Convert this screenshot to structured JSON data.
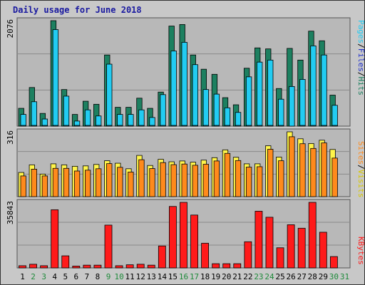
{
  "title": "Daily usage for June 2018",
  "colors": {
    "background": "#c8c8c8",
    "panel": "#b8b8b8",
    "grid": "#8a8a8a",
    "hits": "#1d8060",
    "files": "#22ccf2",
    "visits": "#fff44a",
    "sites": "#ff8a1c",
    "kbytes": "#ff1a1a",
    "title_text": "#1a1aa0",
    "weekend_day": "#1e8a3a",
    "weekday": "#000000"
  },
  "axis_labels": {
    "pages": "Pages",
    "files": "Files",
    "hits": "Hits",
    "sites": "Sites",
    "visits": "Visits",
    "kbytes": "KBytes",
    "sep": "/"
  },
  "chart_data": [
    {
      "type": "bar",
      "title": "",
      "ymax_label": "2076",
      "ylim": [
        0,
        2076
      ],
      "categories": [
        "1",
        "2",
        "3",
        "4",
        "5",
        "6",
        "7",
        "8",
        "9",
        "10",
        "11",
        "12",
        "13",
        "14",
        "15",
        "16",
        "17",
        "18",
        "19",
        "20",
        "21",
        "22",
        "23",
        "24",
        "25",
        "26",
        "27",
        "28",
        "29",
        "30",
        "31"
      ],
      "series": [
        {
          "name": "Hits",
          "values": [
            350,
            760,
            250,
            2076,
            720,
            230,
            490,
            430,
            1400,
            370,
            370,
            550,
            350,
            670,
            1970,
            2000,
            1400,
            1120,
            1020,
            560,
            420,
            1140,
            1540,
            1520,
            740,
            1530,
            1300,
            1870,
            1680,
            610,
            0
          ]
        },
        {
          "name": "Files",
          "values": [
            230,
            480,
            140,
            1900,
            590,
            100,
            320,
            200,
            1220,
            230,
            230,
            320,
            170,
            620,
            1480,
            1650,
            1210,
            720,
            630,
            360,
            270,
            970,
            1260,
            1300,
            530,
            780,
            920,
            1580,
            1400,
            410,
            0
          ]
        },
        {
          "name": "Pages",
          "values": [
            10,
            10,
            10,
            10,
            10,
            10,
            10,
            10,
            10,
            10,
            10,
            10,
            10,
            10,
            10,
            10,
            10,
            10,
            10,
            10,
            10,
            10,
            10,
            10,
            10,
            780,
            10,
            10,
            10,
            10,
            0
          ]
        }
      ]
    },
    {
      "type": "bar",
      "title": "",
      "ymax_label": "316",
      "ylim": [
        0,
        316
      ],
      "categories": [
        "1",
        "2",
        "3",
        "4",
        "5",
        "6",
        "7",
        "8",
        "9",
        "10",
        "11",
        "12",
        "13",
        "14",
        "15",
        "16",
        "17",
        "18",
        "19",
        "20",
        "21",
        "22",
        "23",
        "24",
        "25",
        "26",
        "27",
        "28",
        "29",
        "30",
        "31"
      ],
      "series": [
        {
          "name": "Visits",
          "values": [
            118,
            155,
            110,
            160,
            155,
            148,
            150,
            157,
            175,
            163,
            136,
            201,
            152,
            182,
            170,
            174,
            168,
            178,
            190,
            228,
            192,
            160,
            160,
            248,
            193,
            316,
            282,
            259,
            275,
            230,
            0
          ]
        },
        {
          "name": "Sites",
          "values": [
            101,
            134,
            101,
            138,
            138,
            125,
            129,
            136,
            161,
            143,
            120,
            180,
            137,
            166,
            156,
            159,
            153,
            158,
            174,
            211,
            176,
            144,
            146,
            231,
            175,
            292,
            258,
            235,
            262,
            188,
            0
          ]
        }
      ]
    },
    {
      "type": "bar",
      "title": "",
      "ymax_label": "35843",
      "ylim": [
        0,
        35843
      ],
      "categories": [
        "1",
        "2",
        "3",
        "4",
        "5",
        "6",
        "7",
        "8",
        "9",
        "10",
        "11",
        "12",
        "13",
        "14",
        "15",
        "16",
        "17",
        "18",
        "19",
        "20",
        "21",
        "22",
        "23",
        "24",
        "25",
        "26",
        "27",
        "28",
        "29",
        "30",
        "31"
      ],
      "series": [
        {
          "name": "KBytes",
          "values": [
            1200,
            2000,
            1200,
            31800,
            6600,
            1000,
            1500,
            1500,
            23400,
            1200,
            1700,
            2000,
            1500,
            12000,
            33600,
            35843,
            28900,
            13500,
            2300,
            2300,
            2300,
            14300,
            31000,
            27700,
            11000,
            23600,
            21700,
            35843,
            19500,
            6200,
            0
          ]
        }
      ]
    }
  ]
}
